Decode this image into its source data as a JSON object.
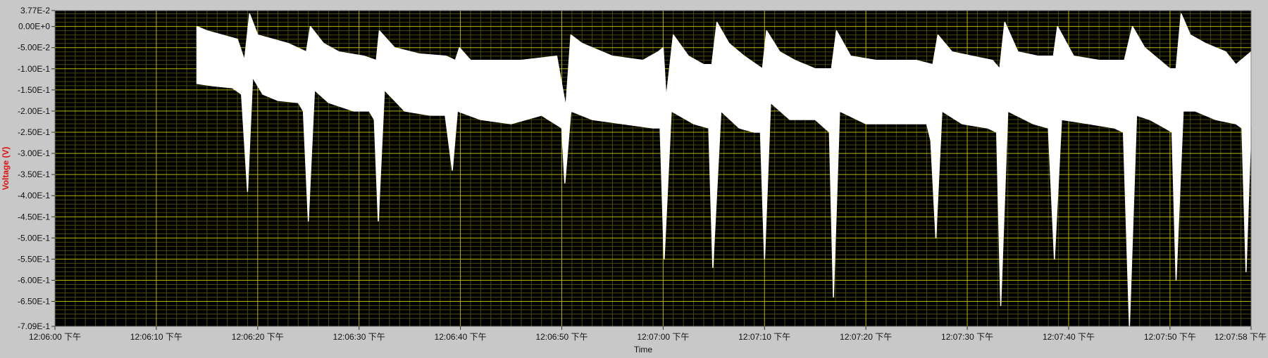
{
  "chart_data": {
    "type": "line",
    "title": "",
    "xlabel": "Time",
    "ylabel": "Voltage (V)",
    "ylim": [
      -0.709,
      0.0377
    ],
    "xlim": [
      "12:06:00 下午",
      "12:07:58 下午"
    ],
    "grid": true,
    "legend": "none",
    "colors": {
      "plot_background": "#000000",
      "major_grid": "#b7b400",
      "minor_grid": "#4a4a00",
      "trace": "#ffffff",
      "frame": "#c8c8c8",
      "ylabel_color": "#e01010",
      "tick_text": "#111111"
    },
    "y_ticks": [
      {
        "value": 0.0377,
        "label": "3.77E-2"
      },
      {
        "value": 0.0,
        "label": "0.00E+0"
      },
      {
        "value": -0.05,
        "label": "-5.00E-2"
      },
      {
        "value": -0.1,
        "label": "-1.00E-1"
      },
      {
        "value": -0.15,
        "label": "-1.50E-1"
      },
      {
        "value": -0.2,
        "label": "-2.00E-1"
      },
      {
        "value": -0.25,
        "label": "-2.50E-1"
      },
      {
        "value": -0.3,
        "label": "-3.00E-1"
      },
      {
        "value": -0.35,
        "label": "-3.50E-1"
      },
      {
        "value": -0.4,
        "label": "-4.00E-1"
      },
      {
        "value": -0.45,
        "label": "-4.50E-1"
      },
      {
        "value": -0.5,
        "label": "-5.00E-1"
      },
      {
        "value": -0.55,
        "label": "-5.50E-1"
      },
      {
        "value": -0.6,
        "label": "-6.00E-1"
      },
      {
        "value": -0.65,
        "label": "-6.50E-1"
      },
      {
        "value": -0.709,
        "label": "-7.09E-1"
      }
    ],
    "x_ticks": [
      {
        "t": 0,
        "label": "12:06:00 下午"
      },
      {
        "t": 10,
        "label": "12:06:10 下午"
      },
      {
        "t": 20,
        "label": "12:06:20 下午"
      },
      {
        "t": 30,
        "label": "12:06:30 下午"
      },
      {
        "t": 40,
        "label": "12:06:40 下午"
      },
      {
        "t": 50,
        "label": "12:06:50 下午"
      },
      {
        "t": 60,
        "label": "12:07:00 下午"
      },
      {
        "t": 70,
        "label": "12:07:10 下午"
      },
      {
        "t": 80,
        "label": "12:07:20 下午"
      },
      {
        "t": 90,
        "label": "12:07:30 下午"
      },
      {
        "t": 100,
        "label": "12:07:40 下午"
      },
      {
        "t": 110,
        "label": "12:07:50 下午"
      },
      {
        "t": 118,
        "label": "12:07:58 下午"
      }
    ],
    "series": [
      {
        "upper": [
          [
            14.0,
            0.0
          ],
          [
            15.0,
            -0.01
          ],
          [
            16.5,
            -0.02
          ],
          [
            18.0,
            -0.03
          ],
          [
            18.7,
            -0.08
          ],
          [
            19.2,
            0.03
          ],
          [
            20.0,
            -0.02
          ],
          [
            21.5,
            -0.03
          ],
          [
            23.0,
            -0.04
          ],
          [
            24.8,
            -0.06
          ],
          [
            25.2,
            0.0
          ],
          [
            26.5,
            -0.04
          ],
          [
            28.0,
            -0.06
          ],
          [
            30.5,
            -0.07
          ],
          [
            31.7,
            -0.08
          ],
          [
            32.0,
            -0.01
          ],
          [
            33.5,
            -0.05
          ],
          [
            36.0,
            -0.065
          ],
          [
            38.6,
            -0.07
          ],
          [
            39.5,
            -0.08
          ],
          [
            39.9,
            -0.05
          ],
          [
            41.0,
            -0.08
          ],
          [
            44.0,
            -0.08
          ],
          [
            46.0,
            -0.08
          ],
          [
            49.5,
            -0.07
          ],
          [
            50.4,
            -0.19
          ],
          [
            50.9,
            -0.02
          ],
          [
            52.0,
            -0.04
          ],
          [
            55.0,
            -0.07
          ],
          [
            58.0,
            -0.08
          ],
          [
            59.5,
            -0.06
          ],
          [
            60.0,
            -0.05
          ],
          [
            60.3,
            -0.17
          ],
          [
            61.0,
            -0.02
          ],
          [
            62.5,
            -0.07
          ],
          [
            64.0,
            -0.09
          ],
          [
            64.8,
            -0.09
          ],
          [
            65.3,
            0.01
          ],
          [
            66.5,
            -0.04
          ],
          [
            68.0,
            -0.07
          ],
          [
            69.8,
            -0.1
          ],
          [
            70.2,
            -0.01
          ],
          [
            71.5,
            -0.06
          ],
          [
            73.0,
            -0.08
          ],
          [
            75.0,
            -0.1
          ],
          [
            76.6,
            -0.1
          ],
          [
            77.1,
            -0.01
          ],
          [
            78.5,
            -0.07
          ],
          [
            81.0,
            -0.08
          ],
          [
            83.0,
            -0.08
          ],
          [
            85.0,
            -0.08
          ],
          [
            86.6,
            -0.09
          ],
          [
            87.1,
            -0.02
          ],
          [
            88.5,
            -0.06
          ],
          [
            90.5,
            -0.07
          ],
          [
            92.5,
            -0.08
          ],
          [
            93.2,
            -0.1
          ],
          [
            93.7,
            0.01
          ],
          [
            95.0,
            -0.06
          ],
          [
            97.0,
            -0.07
          ],
          [
            98.5,
            -0.07
          ],
          [
            98.9,
            0.0
          ],
          [
            100.5,
            -0.07
          ],
          [
            103.0,
            -0.08
          ],
          [
            105.5,
            -0.08
          ],
          [
            106.3,
            0.0
          ],
          [
            107.5,
            -0.05
          ],
          [
            108.5,
            -0.07
          ],
          [
            110.0,
            -0.1
          ],
          [
            110.6,
            -0.1
          ],
          [
            111.1,
            0.03
          ],
          [
            112.0,
            -0.02
          ],
          [
            113.5,
            -0.04
          ],
          [
            115.5,
            -0.06
          ],
          [
            116.5,
            -0.09
          ],
          [
            117.0,
            -0.08
          ],
          [
            118.0,
            -0.06
          ]
        ],
        "lower": [
          [
            14.0,
            -0.135
          ],
          [
            15.5,
            -0.14
          ],
          [
            17.5,
            -0.145
          ],
          [
            18.4,
            -0.16
          ],
          [
            19.0,
            -0.39
          ],
          [
            19.5,
            -0.12
          ],
          [
            20.5,
            -0.16
          ],
          [
            22.0,
            -0.175
          ],
          [
            24.0,
            -0.18
          ],
          [
            24.5,
            -0.2
          ],
          [
            25.0,
            -0.46
          ],
          [
            25.6,
            -0.15
          ],
          [
            27.0,
            -0.18
          ],
          [
            29.5,
            -0.2
          ],
          [
            31.0,
            -0.2
          ],
          [
            31.5,
            -0.22
          ],
          [
            31.9,
            -0.46
          ],
          [
            32.5,
            -0.15
          ],
          [
            34.5,
            -0.2
          ],
          [
            37.0,
            -0.21
          ],
          [
            38.5,
            -0.21
          ],
          [
            39.2,
            -0.34
          ],
          [
            39.7,
            -0.2
          ],
          [
            42.0,
            -0.22
          ],
          [
            45.0,
            -0.23
          ],
          [
            48.0,
            -0.21
          ],
          [
            50.0,
            -0.24
          ],
          [
            50.3,
            -0.37
          ],
          [
            50.9,
            -0.2
          ],
          [
            53.0,
            -0.22
          ],
          [
            56.0,
            -0.23
          ],
          [
            59.0,
            -0.24
          ],
          [
            59.7,
            -0.24
          ],
          [
            60.1,
            -0.55
          ],
          [
            60.8,
            -0.2
          ],
          [
            63.0,
            -0.23
          ],
          [
            64.5,
            -0.24
          ],
          [
            64.9,
            -0.57
          ],
          [
            65.7,
            -0.2
          ],
          [
            67.5,
            -0.24
          ],
          [
            69.0,
            -0.25
          ],
          [
            69.6,
            -0.25
          ],
          [
            70.0,
            -0.55
          ],
          [
            70.6,
            -0.18
          ],
          [
            72.5,
            -0.22
          ],
          [
            75.0,
            -0.22
          ],
          [
            76.4,
            -0.25
          ],
          [
            76.8,
            -0.64
          ],
          [
            77.4,
            -0.2
          ],
          [
            80.0,
            -0.23
          ],
          [
            83.0,
            -0.23
          ],
          [
            86.0,
            -0.23
          ],
          [
            86.4,
            -0.27
          ],
          [
            86.9,
            -0.5
          ],
          [
            87.5,
            -0.2
          ],
          [
            89.5,
            -0.23
          ],
          [
            92.0,
            -0.24
          ],
          [
            92.9,
            -0.25
          ],
          [
            93.3,
            -0.66
          ],
          [
            94.0,
            -0.2
          ],
          [
            96.5,
            -0.23
          ],
          [
            98.0,
            -0.24
          ],
          [
            98.6,
            -0.55
          ],
          [
            99.3,
            -0.22
          ],
          [
            102.0,
            -0.23
          ],
          [
            104.5,
            -0.24
          ],
          [
            105.4,
            -0.25
          ],
          [
            106.0,
            -0.71
          ],
          [
            106.7,
            -0.21
          ],
          [
            108.0,
            -0.22
          ],
          [
            109.5,
            -0.24
          ],
          [
            110.2,
            -0.25
          ],
          [
            110.6,
            -0.6
          ],
          [
            111.3,
            -0.2
          ],
          [
            112.5,
            -0.2
          ],
          [
            114.5,
            -0.22
          ],
          [
            116.5,
            -0.23
          ],
          [
            117.1,
            -0.24
          ],
          [
            117.5,
            -0.58
          ],
          [
            118.0,
            -0.23
          ]
        ]
      }
    ]
  }
}
